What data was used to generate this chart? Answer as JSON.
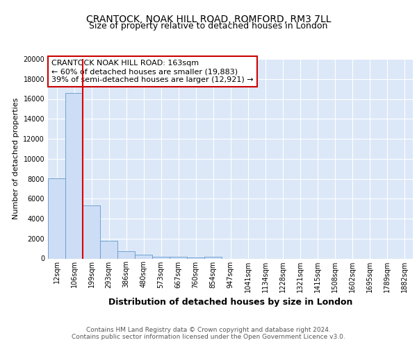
{
  "title1": "CRANTOCK, NOAK HILL ROAD, ROMFORD, RM3 7LL",
  "title2": "Size of property relative to detached houses in London",
  "xlabel": "Distribution of detached houses by size in London",
  "ylabel": "Number of detached properties",
  "annotation_title": "CRANTOCK NOAK HILL ROAD: 163sqm",
  "annotation_line1": "← 60% of detached houses are smaller (19,883)",
  "annotation_line2": "39% of semi-detached houses are larger (12,921) →",
  "bin_labels": [
    "12sqm",
    "106sqm",
    "199sqm",
    "293sqm",
    "386sqm",
    "480sqm",
    "573sqm",
    "667sqm",
    "760sqm",
    "854sqm",
    "947sqm",
    "1041sqm",
    "1134sqm",
    "1228sqm",
    "1321sqm",
    "1415sqm",
    "1508sqm",
    "1602sqm",
    "1695sqm",
    "1789sqm",
    "1882sqm"
  ],
  "bar_heights": [
    8050,
    16600,
    5300,
    1800,
    700,
    380,
    200,
    150,
    100,
    150,
    0,
    0,
    0,
    0,
    0,
    0,
    0,
    0,
    0,
    0,
    0
  ],
  "bar_color": "#ccddf5",
  "bar_edge_color": "#6699cc",
  "vline_x": 1.5,
  "vline_color": "#dd0000",
  "ylim": [
    0,
    20000
  ],
  "yticks": [
    0,
    2000,
    4000,
    6000,
    8000,
    10000,
    12000,
    14000,
    16000,
    18000,
    20000
  ],
  "bg_color": "#dce8f8",
  "footer1": "Contains HM Land Registry data © Crown copyright and database right 2024.",
  "footer2": "Contains public sector information licensed under the Open Government Licence v3.0.",
  "annotation_box_color": "#ffffff",
  "annotation_box_edge": "#cc0000",
  "title1_fontsize": 10,
  "title2_fontsize": 9,
  "ylabel_fontsize": 8,
  "xlabel_fontsize": 9,
  "tick_fontsize": 7,
  "ann_fontsize": 8
}
